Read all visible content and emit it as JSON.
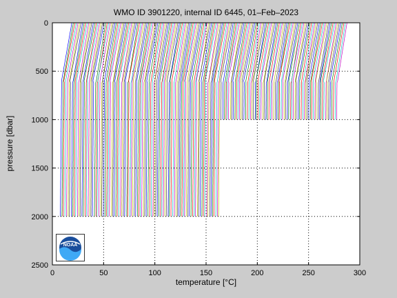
{
  "chart_data": {
    "type": "line",
    "title": "WMO ID 3901220, internal ID 6445, 01–Feb–2023",
    "xlabel": "temperature [°C]",
    "ylabel": "pressure [dbar]",
    "xlim": [
      0,
      300
    ],
    "ylim": [
      2500,
      0
    ],
    "y_reversed": true,
    "xticks": [
      0,
      50,
      100,
      150,
      200,
      250,
      300
    ],
    "yticks": [
      0,
      500,
      1000,
      1500,
      2000,
      2500
    ],
    "grid": "dotted",
    "profile_offset_step": 1.5,
    "profile_count": 180,
    "deep_profiles_until": 104,
    "deep_max_pressure": 2000,
    "shallow_max_pressure": 1020,
    "series_colors": [
      "#0000ff",
      "#007f00",
      "#ff0000",
      "#00bfbf",
      "#bf00bf",
      "#bfbf00",
      "#3f3f3f"
    ],
    "logo": {
      "icon": "noaa-logo-icon",
      "text": "NOAA"
    }
  }
}
